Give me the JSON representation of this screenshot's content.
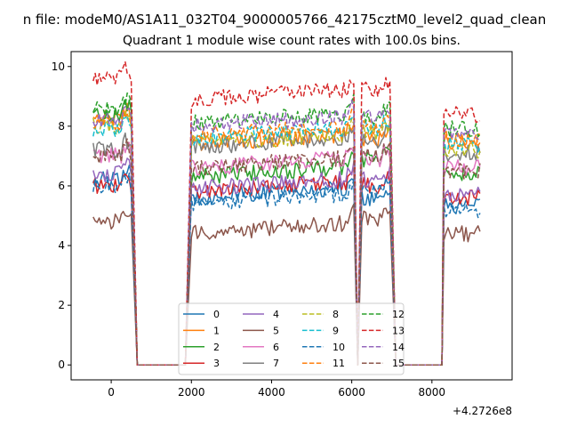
{
  "suptitle": "n file: modeM0/AS1A11_032T04_9000005766_42175cztM0_level2_quad_clean",
  "chart_data": {
    "type": "line",
    "title": "Quadrant 1 module wise count rates with 100.0s bins.",
    "xlabel": "",
    "ylabel": "",
    "x_offset_label": "+4.2726e8",
    "xlim": [
      -1000,
      10000
    ],
    "ylim": [
      -0.5,
      10.5
    ],
    "xticks": [
      0,
      2000,
      4000,
      6000,
      8000
    ],
    "xtick_labels": [
      "0",
      "2000",
      "4000",
      "6000",
      "8000"
    ],
    "yticks": [
      0,
      2,
      4,
      6,
      8,
      10
    ],
    "ytick_labels": [
      "0",
      "2",
      "4",
      "6",
      "8",
      "10"
    ],
    "grid": false,
    "legend": {
      "placement": "lower center",
      "ncol": 4
    },
    "segments": [
      {
        "start": -450,
        "end": 500,
        "step": 50
      },
      {
        "start": 2000,
        "end": 6050,
        "step": 50
      },
      {
        "start": 6250,
        "end": 6950,
        "step": 50
      },
      {
        "start": 8300,
        "end": 9200,
        "step": 50
      }
    ],
    "gaps": [
      {
        "ramp_end": 650,
        "flat_end": 1850
      },
      {
        "ramp_end": 6150
      },
      {
        "ramp_end": 7100,
        "flat_end": 8250
      }
    ],
    "series": [
      {
        "name": "0",
        "color": "#1f77b4",
        "dash": "solid",
        "levels": [
          6.2,
          5.6,
          5.6,
          5.3
        ]
      },
      {
        "name": "1",
        "color": "#ff7f0e",
        "dash": "solid",
        "levels": [
          8.3,
          7.4,
          7.6,
          7.5
        ]
      },
      {
        "name": "2",
        "color": "#2ca02c",
        "dash": "solid",
        "levels": [
          8.4,
          6.3,
          6.9,
          6.4
        ]
      },
      {
        "name": "3",
        "color": "#d62728",
        "dash": "solid",
        "levels": [
          6.0,
          5.8,
          6.0,
          5.6
        ]
      },
      {
        "name": "4",
        "color": "#9467bd",
        "dash": "solid",
        "levels": [
          6.4,
          5.9,
          6.2,
          5.7
        ]
      },
      {
        "name": "5",
        "color": "#8c564b",
        "dash": "solid",
        "levels": [
          4.8,
          4.4,
          4.9,
          4.4
        ]
      },
      {
        "name": "6",
        "color": "#e377c2",
        "dash": "solid",
        "levels": [
          7.0,
          6.6,
          6.9,
          6.6
        ]
      },
      {
        "name": "7",
        "color": "#7f7f7f",
        "dash": "solid",
        "levels": [
          7.2,
          7.3,
          7.5,
          7.1
        ]
      },
      {
        "name": "8",
        "color": "#bcbd22",
        "dash": "dashed",
        "levels": [
          8.0,
          7.4,
          7.8,
          7.2
        ]
      },
      {
        "name": "9",
        "color": "#17becf",
        "dash": "dashed",
        "levels": [
          7.9,
          7.6,
          7.9,
          7.4
        ]
      },
      {
        "name": "10",
        "color": "#1f77b4",
        "dash": "dashed",
        "levels": [
          6.0,
          5.4,
          5.8,
          5.2
        ]
      },
      {
        "name": "11",
        "color": "#ff7f0e",
        "dash": "dashed",
        "levels": [
          8.1,
          7.7,
          8.0,
          7.6
        ]
      },
      {
        "name": "12",
        "color": "#2ca02c",
        "dash": "dashed",
        "levels": [
          8.6,
          8.1,
          8.3,
          7.9
        ]
      },
      {
        "name": "13",
        "color": "#d62728",
        "dash": "dashed",
        "levels": [
          9.6,
          8.9,
          9.2,
          8.4
        ]
      },
      {
        "name": "14",
        "color": "#9467bd",
        "dash": "dashed",
        "levels": [
          8.2,
          8.0,
          8.3,
          7.8
        ]
      },
      {
        "name": "15",
        "color": "#8c564b",
        "dash": "dashed",
        "levels": [
          7.0,
          6.6,
          7.0,
          6.5
        ]
      }
    ]
  }
}
